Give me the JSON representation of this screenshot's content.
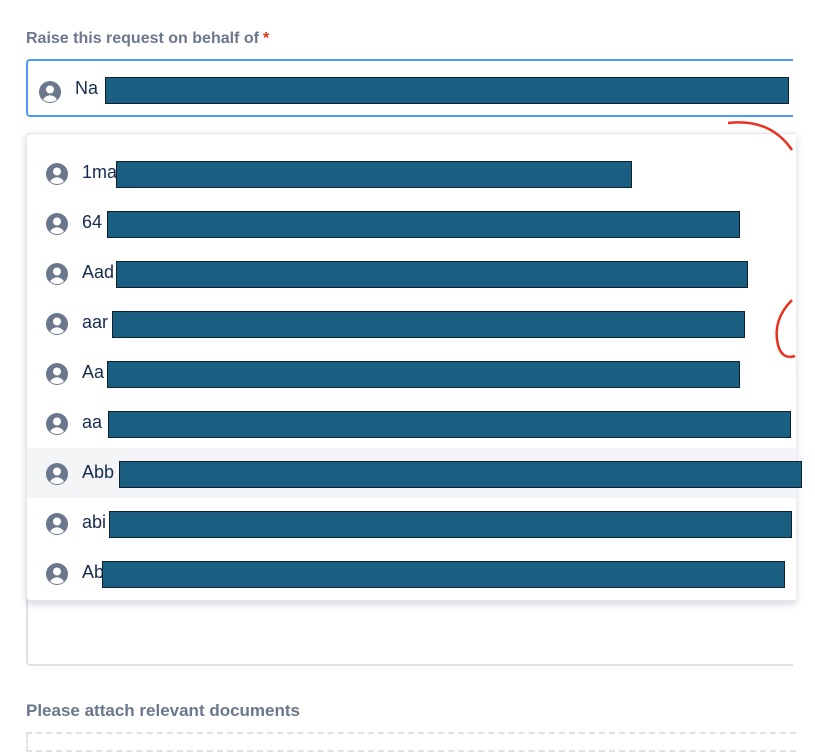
{
  "form": {
    "field_label": "Raise this request on behalf of",
    "required_mark": "*",
    "input_value": "Na",
    "options": [
      "1ma",
      "64",
      "Aad",
      "aar",
      "Aa",
      "aa",
      "Abb",
      "abi",
      "Ab"
    ],
    "attachments_label": "Please attach relevant documents"
  }
}
